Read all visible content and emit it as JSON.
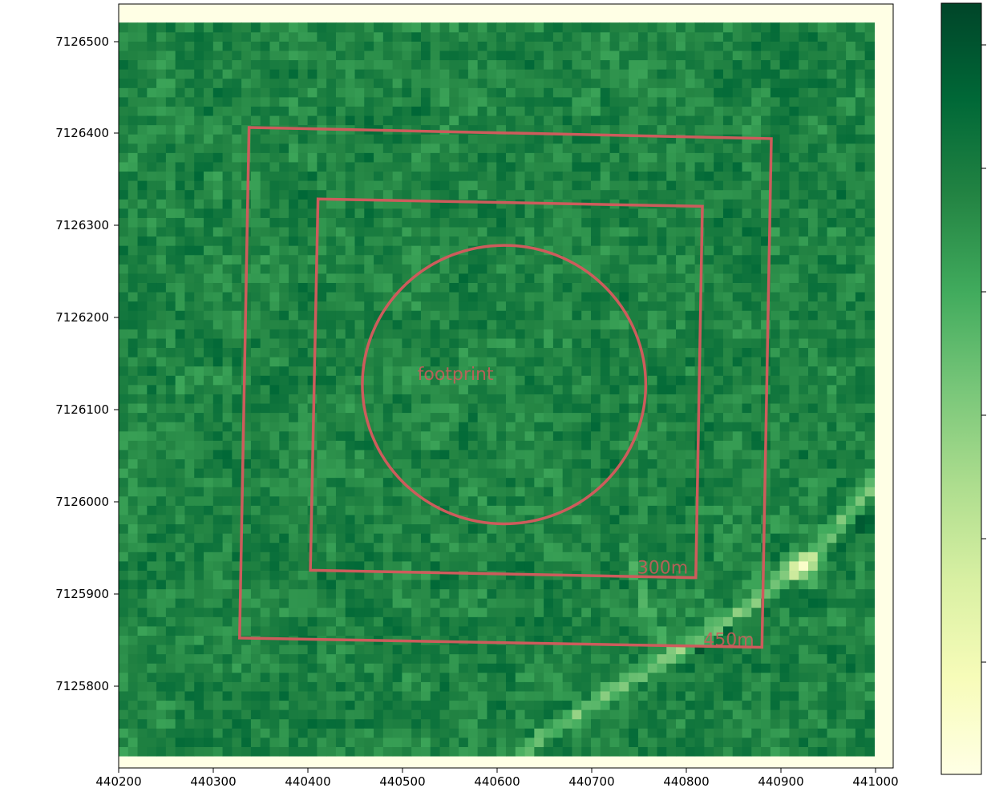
{
  "chart_data": {
    "type": "heatmap",
    "title": "",
    "xlabel": "",
    "ylabel": "",
    "xlim": [
      440200,
      441020
    ],
    "ylim": [
      7125717,
      7126540
    ],
    "x_ticks": [
      "440200",
      "440300",
      "440400",
      "440500",
      "440600",
      "440700",
      "440800",
      "440900",
      "441000"
    ],
    "y_ticks": [
      "7125800",
      "7125900",
      "7126000",
      "7126100",
      "7126200",
      "7126300",
      "7126400",
      "7126500"
    ],
    "colormap": "YlGn",
    "colorbar_ticks": 7,
    "grid": false,
    "overlay_color": "#cd5c5c",
    "footprint": {
      "label": "footprint",
      "center": [
        440608,
        7126130
      ],
      "radius": 150
    },
    "squares": [
      {
        "label": "300m",
        "corners": [
          [
            440411,
            7126330
          ],
          [
            440818,
            7126322
          ],
          [
            440811,
            7125922
          ],
          [
            440403,
            7125930
          ]
        ]
      },
      {
        "label": "450m",
        "corners": [
          [
            440338,
            7126407
          ],
          [
            440891,
            7126395
          ],
          [
            440881,
            7125847
          ],
          [
            440328,
            7125857
          ]
        ]
      }
    ],
    "features": {
      "road_main": [
        [
          441003,
          7126030
        ],
        [
          440930,
          7125940
        ],
        [
          440870,
          7125895
        ],
        [
          440770,
          7125830
        ],
        [
          440660,
          7125760
        ],
        [
          440608,
          7125717
        ]
      ],
      "road_branch": [
        [
          440740,
          7125950
        ],
        [
          440765,
          7125870
        ],
        [
          440790,
          7125840
        ]
      ],
      "channel_dark": [
        [
          441003,
          7126000
        ],
        [
          440935,
          7125925
        ],
        [
          440900,
          7125900
        ],
        [
          440820,
          7125850
        ],
        [
          440700,
          7125790
        ],
        [
          440640,
          7125730
        ]
      ],
      "bright_patch": [
        440925,
        7125935
      ],
      "trail": [
        [
          440620,
          7126115
        ],
        [
          440650,
          7126050
        ],
        [
          440680,
          7125970
        ]
      ]
    }
  },
  "axes": {
    "x_ticks": [
      "440200",
      "440300",
      "440400",
      "440500",
      "440600",
      "440700",
      "440800",
      "440900",
      "441000"
    ],
    "y_ticks": [
      "7125800",
      "7125900",
      "7126000",
      "7126100",
      "7126200",
      "7126300",
      "7126400",
      "7126500"
    ]
  },
  "annotations": {
    "footprint": "footprint",
    "square_300": "300m",
    "square_450": "450m"
  }
}
